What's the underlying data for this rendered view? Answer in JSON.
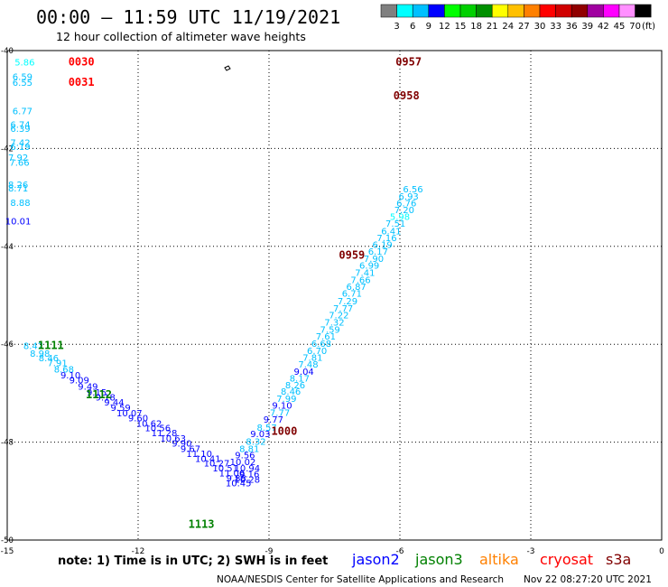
{
  "title": "00:00 – 11:59 UTC 11/19/2021",
  "subtitle": "12 hour collection of altimeter wave heights",
  "legend": {
    "unit": "(ft)",
    "labels": [
      "3",
      "6",
      "9",
      "12",
      "15",
      "18",
      "21",
      "24",
      "27",
      "30",
      "33",
      "36",
      "39",
      "42",
      "45",
      "70"
    ],
    "colors": [
      "#808080",
      "#00ffff",
      "#00c0ff",
      "#0000ff",
      "#00ff00",
      "#00d000",
      "#009000",
      "#ffff00",
      "#ffc000",
      "#ff8000",
      "#ff0000",
      "#d00000",
      "#900000",
      "#a000a0",
      "#ff00ff",
      "#ff90ff",
      "#000000"
    ]
  },
  "note": "note: 1) Time is in UTC; 2) SWH is in feet",
  "satellites": [
    {
      "name": "jason2",
      "color": "#0000ff"
    },
    {
      "name": "jason3",
      "color": "#008000"
    },
    {
      "name": "altika",
      "color": "#ff8000"
    },
    {
      "name": "cryosat",
      "color": "#ff0000"
    },
    {
      "name": "s3a",
      "color": "#800000"
    }
  ],
  "footer": "NOAA/NESDIS Center for Satellite Applications and Research",
  "timestamp": "Nov 22 08:27:20 UTC 2021",
  "chart_data": {
    "type": "scatter",
    "xlim": [
      -15,
      0
    ],
    "ylim": [
      -50,
      -40
    ],
    "xticks": [
      "-15",
      "-12",
      "-9",
      "-6",
      "-3",
      "0"
    ],
    "yticks": [
      "-40",
      "-42",
      "-44",
      "-46",
      "-48",
      "-50"
    ],
    "grid": true,
    "time_labels": [
      {
        "text": "0030",
        "x": -13.3,
        "y": -40.3,
        "color": "#ff0000"
      },
      {
        "text": "0031",
        "x": -13.3,
        "y": -40.72,
        "color": "#ff0000"
      },
      {
        "text": "0957",
        "x": -5.8,
        "y": -40.3,
        "color": "#800000"
      },
      {
        "text": "0958",
        "x": -5.85,
        "y": -41.0,
        "color": "#800000"
      },
      {
        "text": "0959",
        "x": -7.1,
        "y": -44.25,
        "color": "#800000"
      },
      {
        "text": "1000",
        "x": -8.65,
        "y": -47.85,
        "color": "#800000"
      },
      {
        "text": "1111",
        "x": -14.0,
        "y": -46.1,
        "color": "#008000"
      },
      {
        "text": "1112",
        "x": -12.9,
        "y": -47.1,
        "color": "#008000"
      },
      {
        "text": "1113",
        "x": -10.55,
        "y": -49.75,
        "color": "#008000"
      }
    ],
    "swh_points": [
      {
        "v": "5.86",
        "x": -14.6,
        "y": -40.3,
        "c": "#00ffff"
      },
      {
        "v": "6.59",
        "x": -14.65,
        "y": -40.6,
        "c": "#00c0ff"
      },
      {
        "v": "6.55",
        "x": -14.65,
        "y": -40.72,
        "c": "#00c0ff"
      },
      {
        "v": "6.77",
        "x": -14.65,
        "y": -41.3,
        "c": "#00c0ff"
      },
      {
        "v": "6.74",
        "x": -14.7,
        "y": -41.58,
        "c": "#00c0ff"
      },
      {
        "v": "6.39",
        "x": -14.7,
        "y": -41.66,
        "c": "#00c0ff"
      },
      {
        "v": "7.42",
        "x": -14.7,
        "y": -41.95,
        "c": "#00c0ff"
      },
      {
        "v": "6.19",
        "x": -14.7,
        "y": -42.03,
        "c": "#00c0ff"
      },
      {
        "v": "7.92",
        "x": -14.75,
        "y": -42.25,
        "c": "#00c0ff"
      },
      {
        "v": "7.66",
        "x": -14.72,
        "y": -42.35,
        "c": "#00c0ff"
      },
      {
        "v": "8.26",
        "x": -14.75,
        "y": -42.8,
        "c": "#00c0ff"
      },
      {
        "v": "8.71",
        "x": -14.75,
        "y": -42.88,
        "c": "#00c0ff"
      },
      {
        "v": "8.88",
        "x": -14.7,
        "y": -43.17,
        "c": "#00c0ff"
      },
      {
        "v": "10.01",
        "x": -14.75,
        "y": -43.55,
        "c": "#0000ff"
      },
      {
        "v": "8.42",
        "x": -14.4,
        "y": -46.1,
        "c": "#00c0ff"
      },
      {
        "v": "8.98",
        "x": -14.25,
        "y": -46.25,
        "c": "#00c0ff"
      },
      {
        "v": "8.46",
        "x": -14.05,
        "y": -46.35,
        "c": "#00c0ff"
      },
      {
        "v": "7.91",
        "x": -13.85,
        "y": -46.45,
        "c": "#00c0ff"
      },
      {
        "v": "8.68",
        "x": -13.7,
        "y": -46.58,
        "c": "#00c0ff"
      },
      {
        "v": "9.10",
        "x": -13.55,
        "y": -46.7,
        "c": "#0000ff"
      },
      {
        "v": "9.09",
        "x": -13.35,
        "y": -46.8,
        "c": "#0000ff"
      },
      {
        "v": "9.49",
        "x": -13.15,
        "y": -46.93,
        "c": "#0000ff"
      },
      {
        "v": "9.15",
        "x": -12.95,
        "y": -47.05,
        "c": "#0000ff"
      },
      {
        "v": "9.18",
        "x": -12.75,
        "y": -47.15,
        "c": "#0000ff"
      },
      {
        "v": "9.44",
        "x": -12.55,
        "y": -47.25,
        "c": "#0000ff"
      },
      {
        "v": "9.59",
        "x": -12.4,
        "y": -47.36,
        "c": "#0000ff"
      },
      {
        "v": "10.07",
        "x": -12.2,
        "y": -47.47,
        "c": "#0000ff"
      },
      {
        "v": "9.60",
        "x": -12.0,
        "y": -47.57,
        "c": "#0000ff"
      },
      {
        "v": "10.62",
        "x": -11.75,
        "y": -47.68,
        "c": "#0000ff"
      },
      {
        "v": "10.56",
        "x": -11.55,
        "y": -47.78,
        "c": "#0000ff"
      },
      {
        "v": "11.28",
        "x": -11.4,
        "y": -47.88,
        "c": "#0000ff"
      },
      {
        "v": "10.63",
        "x": -11.2,
        "y": -47.99,
        "c": "#0000ff"
      },
      {
        "v": "9.90",
        "x": -11.0,
        "y": -48.09,
        "c": "#0000ff"
      },
      {
        "v": "9.67",
        "x": -10.8,
        "y": -48.2,
        "c": "#0000ff"
      },
      {
        "v": "11.10",
        "x": -10.6,
        "y": -48.3,
        "c": "#0000ff"
      },
      {
        "v": "10.41",
        "x": -10.4,
        "y": -48.4,
        "c": "#0000ff"
      },
      {
        "v": "10.27",
        "x": -10.2,
        "y": -48.5,
        "c": "#0000ff"
      },
      {
        "v": "10.51",
        "x": -10.0,
        "y": -48.6,
        "c": "#0000ff"
      },
      {
        "v": "11.06",
        "x": -9.85,
        "y": -48.7,
        "c": "#0000ff"
      },
      {
        "v": "9.88",
        "x": -9.75,
        "y": -48.8,
        "c": "#0000ff"
      },
      {
        "v": "10.45",
        "x": -9.7,
        "y": -48.9,
        "c": "#0000ff"
      },
      {
        "v": "10.28",
        "x": -9.5,
        "y": -48.83,
        "c": "#0000ff"
      },
      {
        "v": "9.16",
        "x": -9.45,
        "y": -48.72,
        "c": "#0000ff"
      },
      {
        "v": "10.94",
        "x": -9.5,
        "y": -48.6,
        "c": "#0000ff"
      },
      {
        "v": "10.02",
        "x": -9.6,
        "y": -48.47,
        "c": "#0000ff"
      },
      {
        "v": "9.56",
        "x": -9.55,
        "y": -48.33,
        "c": "#0000ff"
      },
      {
        "v": "8.81",
        "x": -9.45,
        "y": -48.2,
        "c": "#00c0ff"
      },
      {
        "v": "8.32",
        "x": -9.3,
        "y": -48.05,
        "c": "#00c0ff"
      },
      {
        "v": "9.03",
        "x": -9.2,
        "y": -47.9,
        "c": "#0000ff"
      },
      {
        "v": "8.57",
        "x": -9.05,
        "y": -47.77,
        "c": "#00c0ff"
      },
      {
        "v": "9.77",
        "x": -8.9,
        "y": -47.6,
        "c": "#0000ff"
      },
      {
        "v": "7.77",
        "x": -8.75,
        "y": -47.46,
        "c": "#00c0ff"
      },
      {
        "v": "9.10",
        "x": -8.7,
        "y": -47.32,
        "c": "#0000ff"
      },
      {
        "v": "7.99",
        "x": -8.6,
        "y": -47.18,
        "c": "#00c0ff"
      },
      {
        "v": "8.46",
        "x": -8.5,
        "y": -47.03,
        "c": "#00c0ff"
      },
      {
        "v": "8.26",
        "x": -8.4,
        "y": -46.9,
        "c": "#00c0ff"
      },
      {
        "v": "8.17",
        "x": -8.3,
        "y": -46.76,
        "c": "#00c0ff"
      },
      {
        "v": "9.04",
        "x": -8.2,
        "y": -46.62,
        "c": "#0000ff"
      },
      {
        "v": "7.48",
        "x": -8.1,
        "y": -46.48,
        "c": "#00c0ff"
      },
      {
        "v": "7.81",
        "x": -8.0,
        "y": -46.34,
        "c": "#00c0ff"
      },
      {
        "v": "6.70",
        "x": -7.9,
        "y": -46.2,
        "c": "#00c0ff"
      },
      {
        "v": "6.68",
        "x": -7.8,
        "y": -46.05,
        "c": "#00c0ff"
      },
      {
        "v": "7.61",
        "x": -7.7,
        "y": -45.9,
        "c": "#00c0ff"
      },
      {
        "v": "7.59",
        "x": -7.6,
        "y": -45.77,
        "c": "#00c0ff"
      },
      {
        "v": "7.32",
        "x": -7.5,
        "y": -45.62,
        "c": "#00c0ff"
      },
      {
        "v": "7.22",
        "x": -7.4,
        "y": -45.47,
        "c": "#00c0ff"
      },
      {
        "v": "7.77",
        "x": -7.3,
        "y": -45.33,
        "c": "#00c0ff"
      },
      {
        "v": "7.29",
        "x": -7.2,
        "y": -45.18,
        "c": "#00c0ff"
      },
      {
        "v": "6.71",
        "x": -7.1,
        "y": -45.03,
        "c": "#00c0ff"
      },
      {
        "v": "6.87",
        "x": -7.0,
        "y": -44.89,
        "c": "#00c0ff"
      },
      {
        "v": "7.66",
        "x": -6.9,
        "y": -44.75,
        "c": "#00c0ff"
      },
      {
        "v": "7.41",
        "x": -6.8,
        "y": -44.6,
        "c": "#00c0ff"
      },
      {
        "v": "6.99",
        "x": -6.7,
        "y": -44.46,
        "c": "#00c0ff"
      },
      {
        "v": "7.90",
        "x": -6.6,
        "y": -44.32,
        "c": "#00c0ff"
      },
      {
        "v": "6.17",
        "x": -6.5,
        "y": -44.17,
        "c": "#00c0ff"
      },
      {
        "v": "6.19",
        "x": -6.4,
        "y": -44.03,
        "c": "#00c0ff"
      },
      {
        "v": "7.16",
        "x": -6.3,
        "y": -43.89,
        "c": "#00c0ff"
      },
      {
        "v": "6.41",
        "x": -6.2,
        "y": -43.75,
        "c": "#00c0ff"
      },
      {
        "v": "7.51",
        "x": -6.1,
        "y": -43.6,
        "c": "#00c0ff"
      },
      {
        "v": "5.98",
        "x": -6.0,
        "y": -43.46,
        "c": "#00ffff"
      },
      {
        "v": "7.20",
        "x": -5.9,
        "y": -43.32,
        "c": "#00c0ff"
      },
      {
        "v": "6.76",
        "x": -5.85,
        "y": -43.18,
        "c": "#00c0ff"
      },
      {
        "v": "6.93",
        "x": -5.8,
        "y": -43.04,
        "c": "#00c0ff"
      },
      {
        "v": "6.56",
        "x": -5.7,
        "y": -42.9,
        "c": "#00c0ff"
      }
    ]
  }
}
